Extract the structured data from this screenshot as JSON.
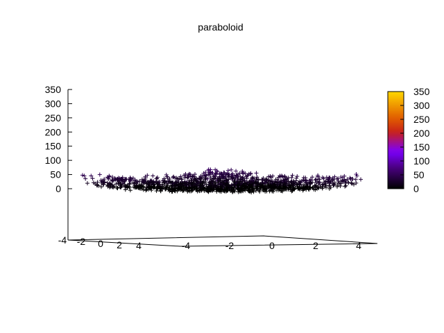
{
  "chart_data": {
    "type": "scatter",
    "title": "paraboloid",
    "marker": "+",
    "z_formula_shape": "paraboloid",
    "x_ticks": [
      -4,
      -2,
      0,
      2,
      4
    ],
    "y_ticks": [
      -4,
      -2,
      0,
      2,
      4
    ],
    "z_ticks": [
      0,
      50,
      100,
      150,
      200,
      250,
      300,
      350
    ],
    "zlim": [
      0,
      350
    ],
    "x_range": [
      -4.5,
      4.5
    ],
    "y_range": [
      -4.5,
      4.5
    ],
    "colorbar": {
      "ticks": [
        0,
        50,
        100,
        150,
        200,
        250,
        300,
        350
      ],
      "range": [
        0,
        350
      ],
      "palette": [
        "#000000",
        "#4b0082",
        "#7a00ff",
        "#c8201a",
        "#e05a00",
        "#ffd700"
      ]
    },
    "legend": "none",
    "grid": false
  }
}
